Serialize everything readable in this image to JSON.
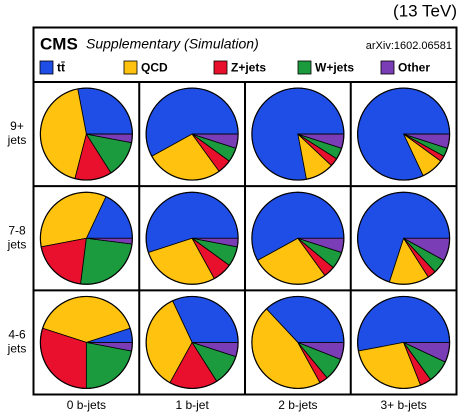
{
  "chart_data": {
    "type": "pie",
    "energy": "(13 TeV)",
    "title": "CMS",
    "subtitle": "Supplementary (Simulation)",
    "reference": "arXiv:1602.06581",
    "rows": [
      "9+ jets",
      "7-8 jets",
      "4-6 jets"
    ],
    "columns": [
      "0 b-jets",
      "1 b-jet",
      "2 b-jets",
      "3+ b-jets"
    ],
    "series": [
      {
        "name": "tt̄",
        "color": "#1f4ee6"
      },
      {
        "name": "QCD",
        "color": "#ffc20e"
      },
      {
        "name": "Z+jets",
        "color": "#e8102c"
      },
      {
        "name": "W+jets",
        "color": "#1b9b3e"
      },
      {
        "name": "Other",
        "color": "#7a3db5"
      }
    ],
    "values": [
      [
        [
          28,
          43,
          13,
          13,
          3
        ],
        [
          58,
          27,
          5,
          5,
          5
        ],
        [
          78,
          10,
          3,
          4,
          5
        ],
        [
          82,
          8,
          2,
          3,
          5
        ]
      ],
      [
        [
          18,
          35,
          20,
          25,
          2
        ],
        [
          55,
          28,
          7,
          7,
          3
        ],
        [
          58,
          27,
          4,
          6,
          5
        ],
        [
          70,
          14,
          3,
          5,
          8
        ]
      ],
      [
        [
          5,
          40,
          30,
          22,
          3
        ],
        [
          32,
          35,
          17,
          11,
          5
        ],
        [
          37,
          46,
          3,
          8,
          6
        ],
        [
          53,
          28,
          4,
          8,
          7
        ]
      ]
    ]
  }
}
